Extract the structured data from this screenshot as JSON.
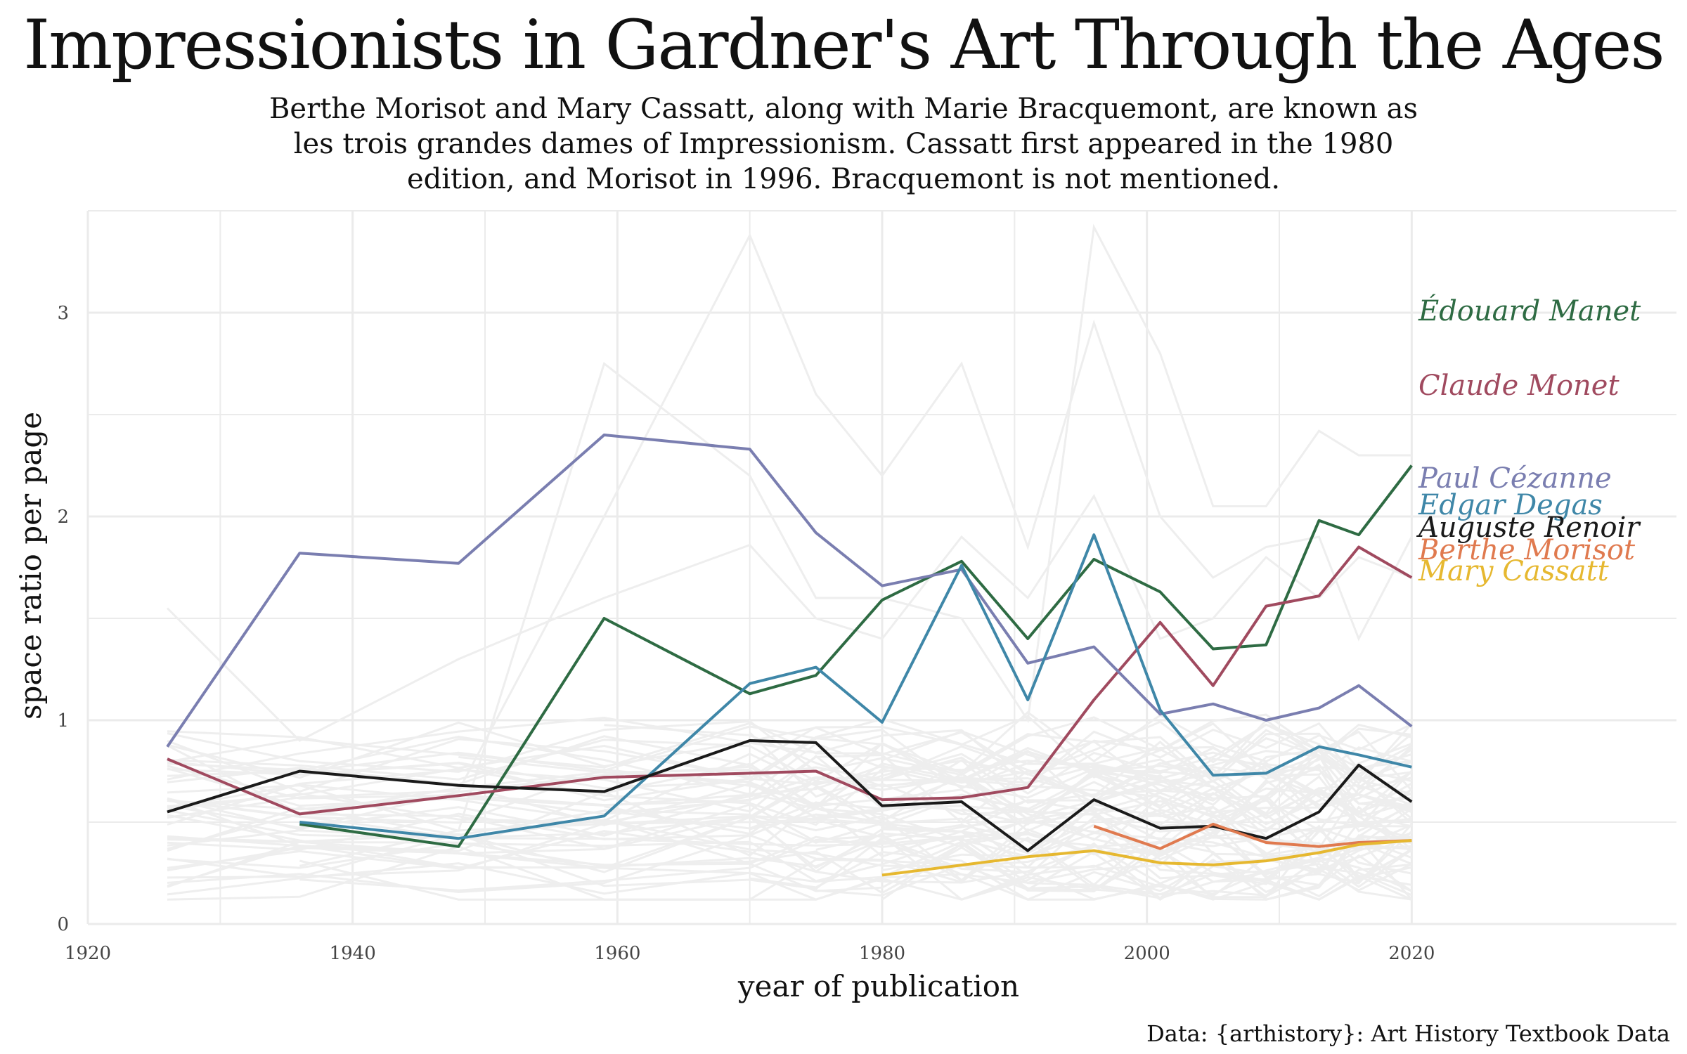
{
  "chart_data": {
    "type": "line",
    "title": "Impressionists in Gardner's Art Through the Ages",
    "subtitle_lines": [
      "Berthe Morisot and Mary Cassatt, along with Marie Bracquemont, are known as",
      "les trois grandes dames of Impressionism. Cassatt first appeared in the 1980",
      "edition, and Morisot in 1996. Bracquemont is not mentioned."
    ],
    "xlabel": "year of publication",
    "ylabel": "space ratio per page",
    "caption": "Data: {arthistory}: Art History Textbook Data",
    "xlim": [
      1920,
      2040
    ],
    "ylim": [
      0,
      3.5
    ],
    "x_ticks": [
      1920,
      1940,
      1960,
      1980,
      2000,
      2020
    ],
    "y_ticks": [
      0,
      1,
      2,
      3
    ],
    "grid": true,
    "legend": "direct labels at right end of lines",
    "background_series_color": "#eeeeee",
    "series": [
      {
        "name": "Édouard Manet",
        "color": "#2e6b43",
        "x": [
          1936,
          1948,
          1959,
          1970,
          1975,
          1980,
          1986,
          1991,
          1996,
          2001,
          2005,
          2009,
          2013,
          2016,
          2020
        ],
        "y": [
          0.49,
          0.38,
          1.5,
          1.13,
          1.22,
          1.59,
          1.78,
          1.4,
          1.79,
          1.63,
          1.35,
          1.37,
          1.98,
          1.91,
          2.25
        ]
      },
      {
        "name": "Claude Monet",
        "color": "#a04a5f",
        "x": [
          1926,
          1936,
          1948,
          1959,
          1970,
          1975,
          1980,
          1986,
          1991,
          1996,
          2001,
          2005,
          2009,
          2013,
          2016,
          2020
        ],
        "y": [
          0.81,
          0.54,
          0.63,
          0.72,
          0.74,
          0.75,
          0.61,
          0.62,
          0.67,
          1.1,
          1.48,
          1.17,
          1.56,
          1.61,
          1.85,
          1.7
        ]
      },
      {
        "name": "Paul Cézanne",
        "color": "#7a7eb0",
        "x": [
          1926,
          1936,
          1948,
          1959,
          1970,
          1975,
          1980,
          1986,
          1991,
          1996,
          2001,
          2005,
          2009,
          2013,
          2016,
          2020
        ],
        "y": [
          0.87,
          1.82,
          1.77,
          2.4,
          2.33,
          1.92,
          1.66,
          1.74,
          1.28,
          1.36,
          1.03,
          1.08,
          1.0,
          1.06,
          1.17,
          0.97
        ]
      },
      {
        "name": "Edgar Degas",
        "color": "#3f87a8",
        "x": [
          1936,
          1948,
          1959,
          1970,
          1975,
          1980,
          1986,
          1991,
          1996,
          2001,
          2005,
          2009,
          2013,
          2016,
          2020
        ],
        "y": [
          0.5,
          0.42,
          0.53,
          1.18,
          1.26,
          0.99,
          1.76,
          1.1,
          1.91,
          1.05,
          0.73,
          0.74,
          0.87,
          0.83,
          0.77
        ]
      },
      {
        "name": "Auguste Renoir",
        "color": "#1a1a1a",
        "x": [
          1926,
          1936,
          1948,
          1959,
          1970,
          1975,
          1980,
          1986,
          1991,
          1996,
          2001,
          2005,
          2009,
          2013,
          2016,
          2020
        ],
        "y": [
          0.55,
          0.75,
          0.68,
          0.65,
          0.9,
          0.89,
          0.58,
          0.6,
          0.36,
          0.61,
          0.47,
          0.48,
          0.42,
          0.55,
          0.78,
          0.6
        ]
      },
      {
        "name": "Berthe Morisot",
        "color": "#e07a4f",
        "x": [
          1996,
          2001,
          2005,
          2009,
          2013,
          2016,
          2020
        ],
        "y": [
          0.48,
          0.37,
          0.49,
          0.4,
          0.38,
          0.4,
          0.41
        ]
      },
      {
        "name": "Mary Cassatt",
        "color": "#e6b830",
        "x": [
          1980,
          1991,
          1996,
          2001,
          2005,
          2009,
          2013,
          2016,
          2020
        ],
        "y": [
          0.24,
          0.33,
          0.36,
          0.3,
          0.29,
          0.31,
          0.35,
          0.39,
          0.41
        ]
      }
    ]
  }
}
